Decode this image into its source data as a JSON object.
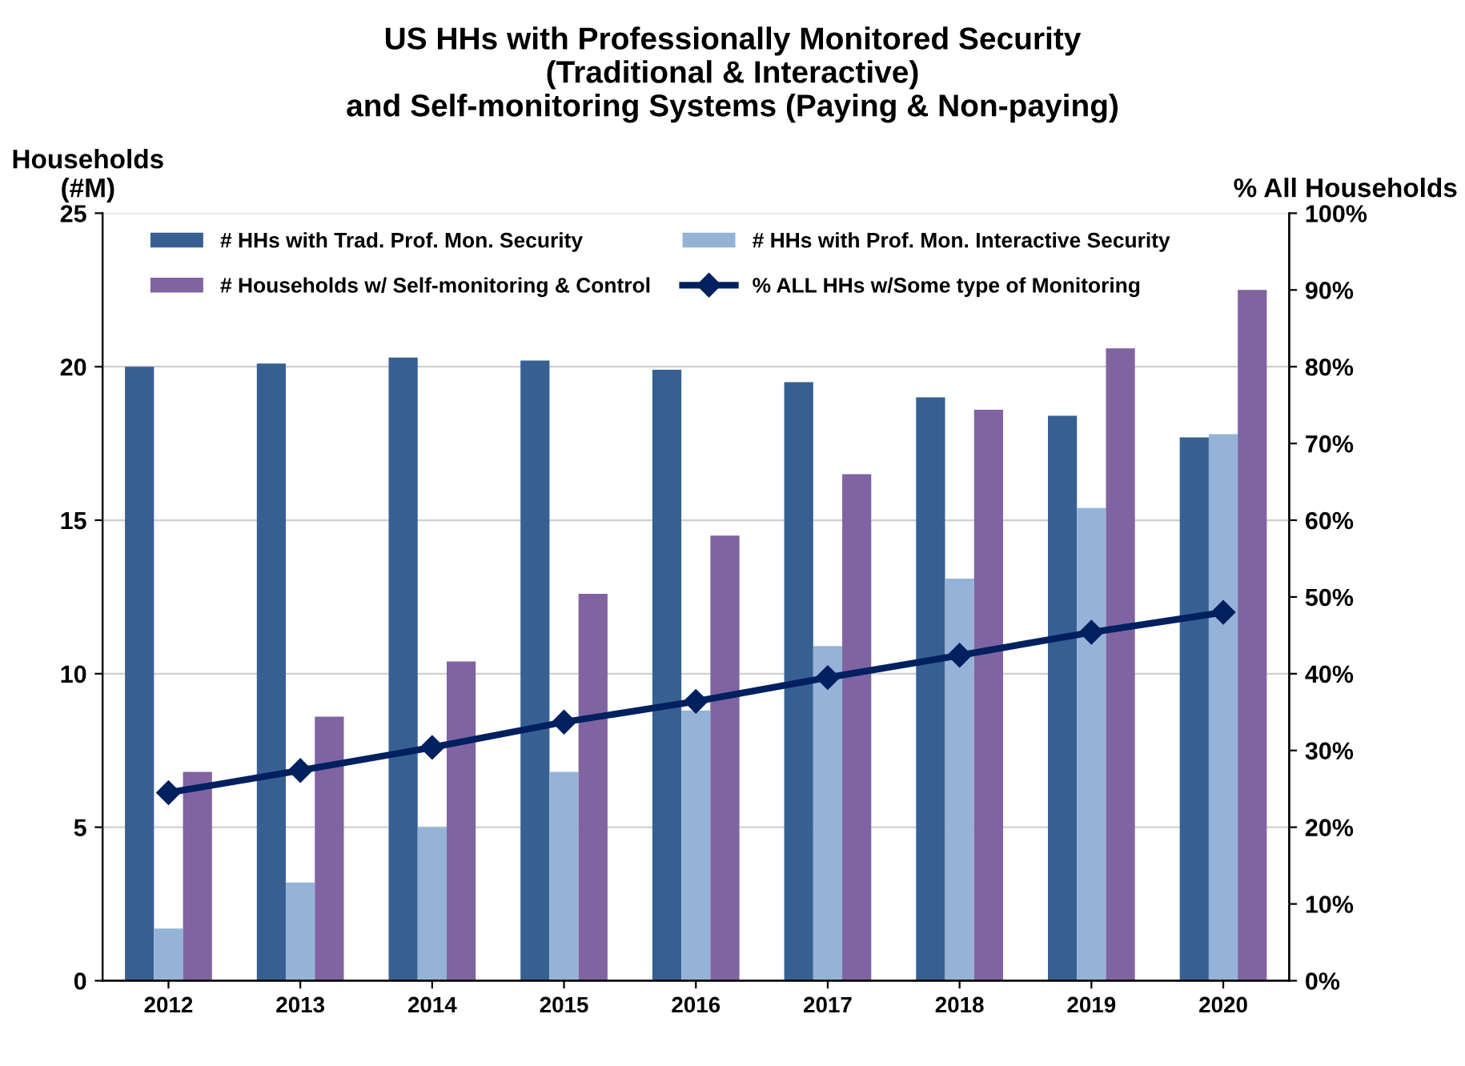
{
  "chart_data": {
    "type": "bar",
    "title": "US HHs with Professionally Monitored Security\n(Traditional & Interactive)\nand Self-monitoring Systems (Paying & Non-paying)",
    "ylabel": "Households\n(#M)",
    "y2label": "% All Households",
    "categories": [
      "2012",
      "2013",
      "2014",
      "2015",
      "2016",
      "2017",
      "2018",
      "2019",
      "2020"
    ],
    "series": [
      {
        "name": "# HHs with Trad. Prof. Mon. Security",
        "color": "#376092",
        "values": [
          20.0,
          20.1,
          20.3,
          20.2,
          19.9,
          19.5,
          19.0,
          18.4,
          17.7
        ]
      },
      {
        "name": "# HHs with Prof. Mon. Interactive Security",
        "color": "#95b3d7",
        "values": [
          1.7,
          3.2,
          5.0,
          6.8,
          8.8,
          10.9,
          13.1,
          15.4,
          17.8
        ]
      },
      {
        "name": "# Households w/ Self-monitoring & Control",
        "color": "#8064a2",
        "values": [
          6.8,
          8.6,
          10.4,
          12.6,
          14.5,
          16.5,
          18.6,
          20.6,
          22.5
        ]
      },
      {
        "name": "% ALL HHs w/Some type of Monitoring",
        "color": "#002060",
        "type": "line",
        "axis": "y2",
        "marker": "diamond",
        "values": [
          24.5,
          27.4,
          30.4,
          33.7,
          36.4,
          39.5,
          42.4,
          45.4,
          48.0
        ]
      }
    ],
    "ylim": [
      0,
      25
    ],
    "yticks": [
      0,
      5,
      10,
      15,
      20,
      25
    ],
    "y2lim": [
      0,
      100
    ],
    "y2ticks": [
      {
        "value": 0,
        "label": "0%"
      },
      {
        "value": 10,
        "label": "10%"
      },
      {
        "value": 20,
        "label": "20%"
      },
      {
        "value": 30,
        "label": "30%"
      },
      {
        "value": 40,
        "label": "40%"
      },
      {
        "value": 50,
        "label": "50%"
      },
      {
        "value": 60,
        "label": "60%"
      },
      {
        "value": 70,
        "label": "70%"
      },
      {
        "value": 80,
        "label": "80%"
      },
      {
        "value": 90,
        "label": "90%"
      },
      {
        "value": 100,
        "label": "100%"
      }
    ],
    "grid": "y",
    "legend": "top"
  }
}
